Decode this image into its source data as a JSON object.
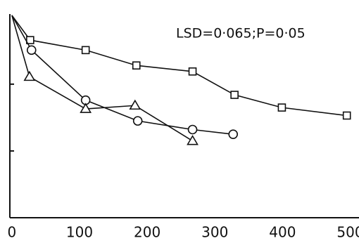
{
  "chart_data": {
    "type": "line",
    "annotation": "LSD=0·065;P=0·05",
    "xlim": [
      -3,
      513
    ],
    "xticks": [
      0,
      100,
      200,
      300,
      400,
      500
    ],
    "ylim": [
      0,
      3.05
    ],
    "yticks": [
      1,
      2
    ],
    "color": "#111111",
    "series": [
      {
        "marker": "square",
        "color": "#111111",
        "x": [
          0,
          27,
          109,
          184,
          267,
          329,
          399,
          495
        ],
        "values": [
          3.03,
          2.66,
          2.51,
          2.28,
          2.19,
          1.84,
          1.65,
          1.53
        ]
      },
      {
        "marker": "circle",
        "color": "#111111",
        "x": [
          0,
          29,
          109,
          186,
          267,
          327
        ],
        "values": [
          3.03,
          2.51,
          1.76,
          1.45,
          1.32,
          1.25
        ]
      },
      {
        "marker": "triangle",
        "color": "#111111",
        "x": [
          0,
          26,
          109,
          182,
          267
        ],
        "values": [
          3.03,
          2.11,
          1.63,
          1.68,
          1.15
        ]
      }
    ]
  }
}
